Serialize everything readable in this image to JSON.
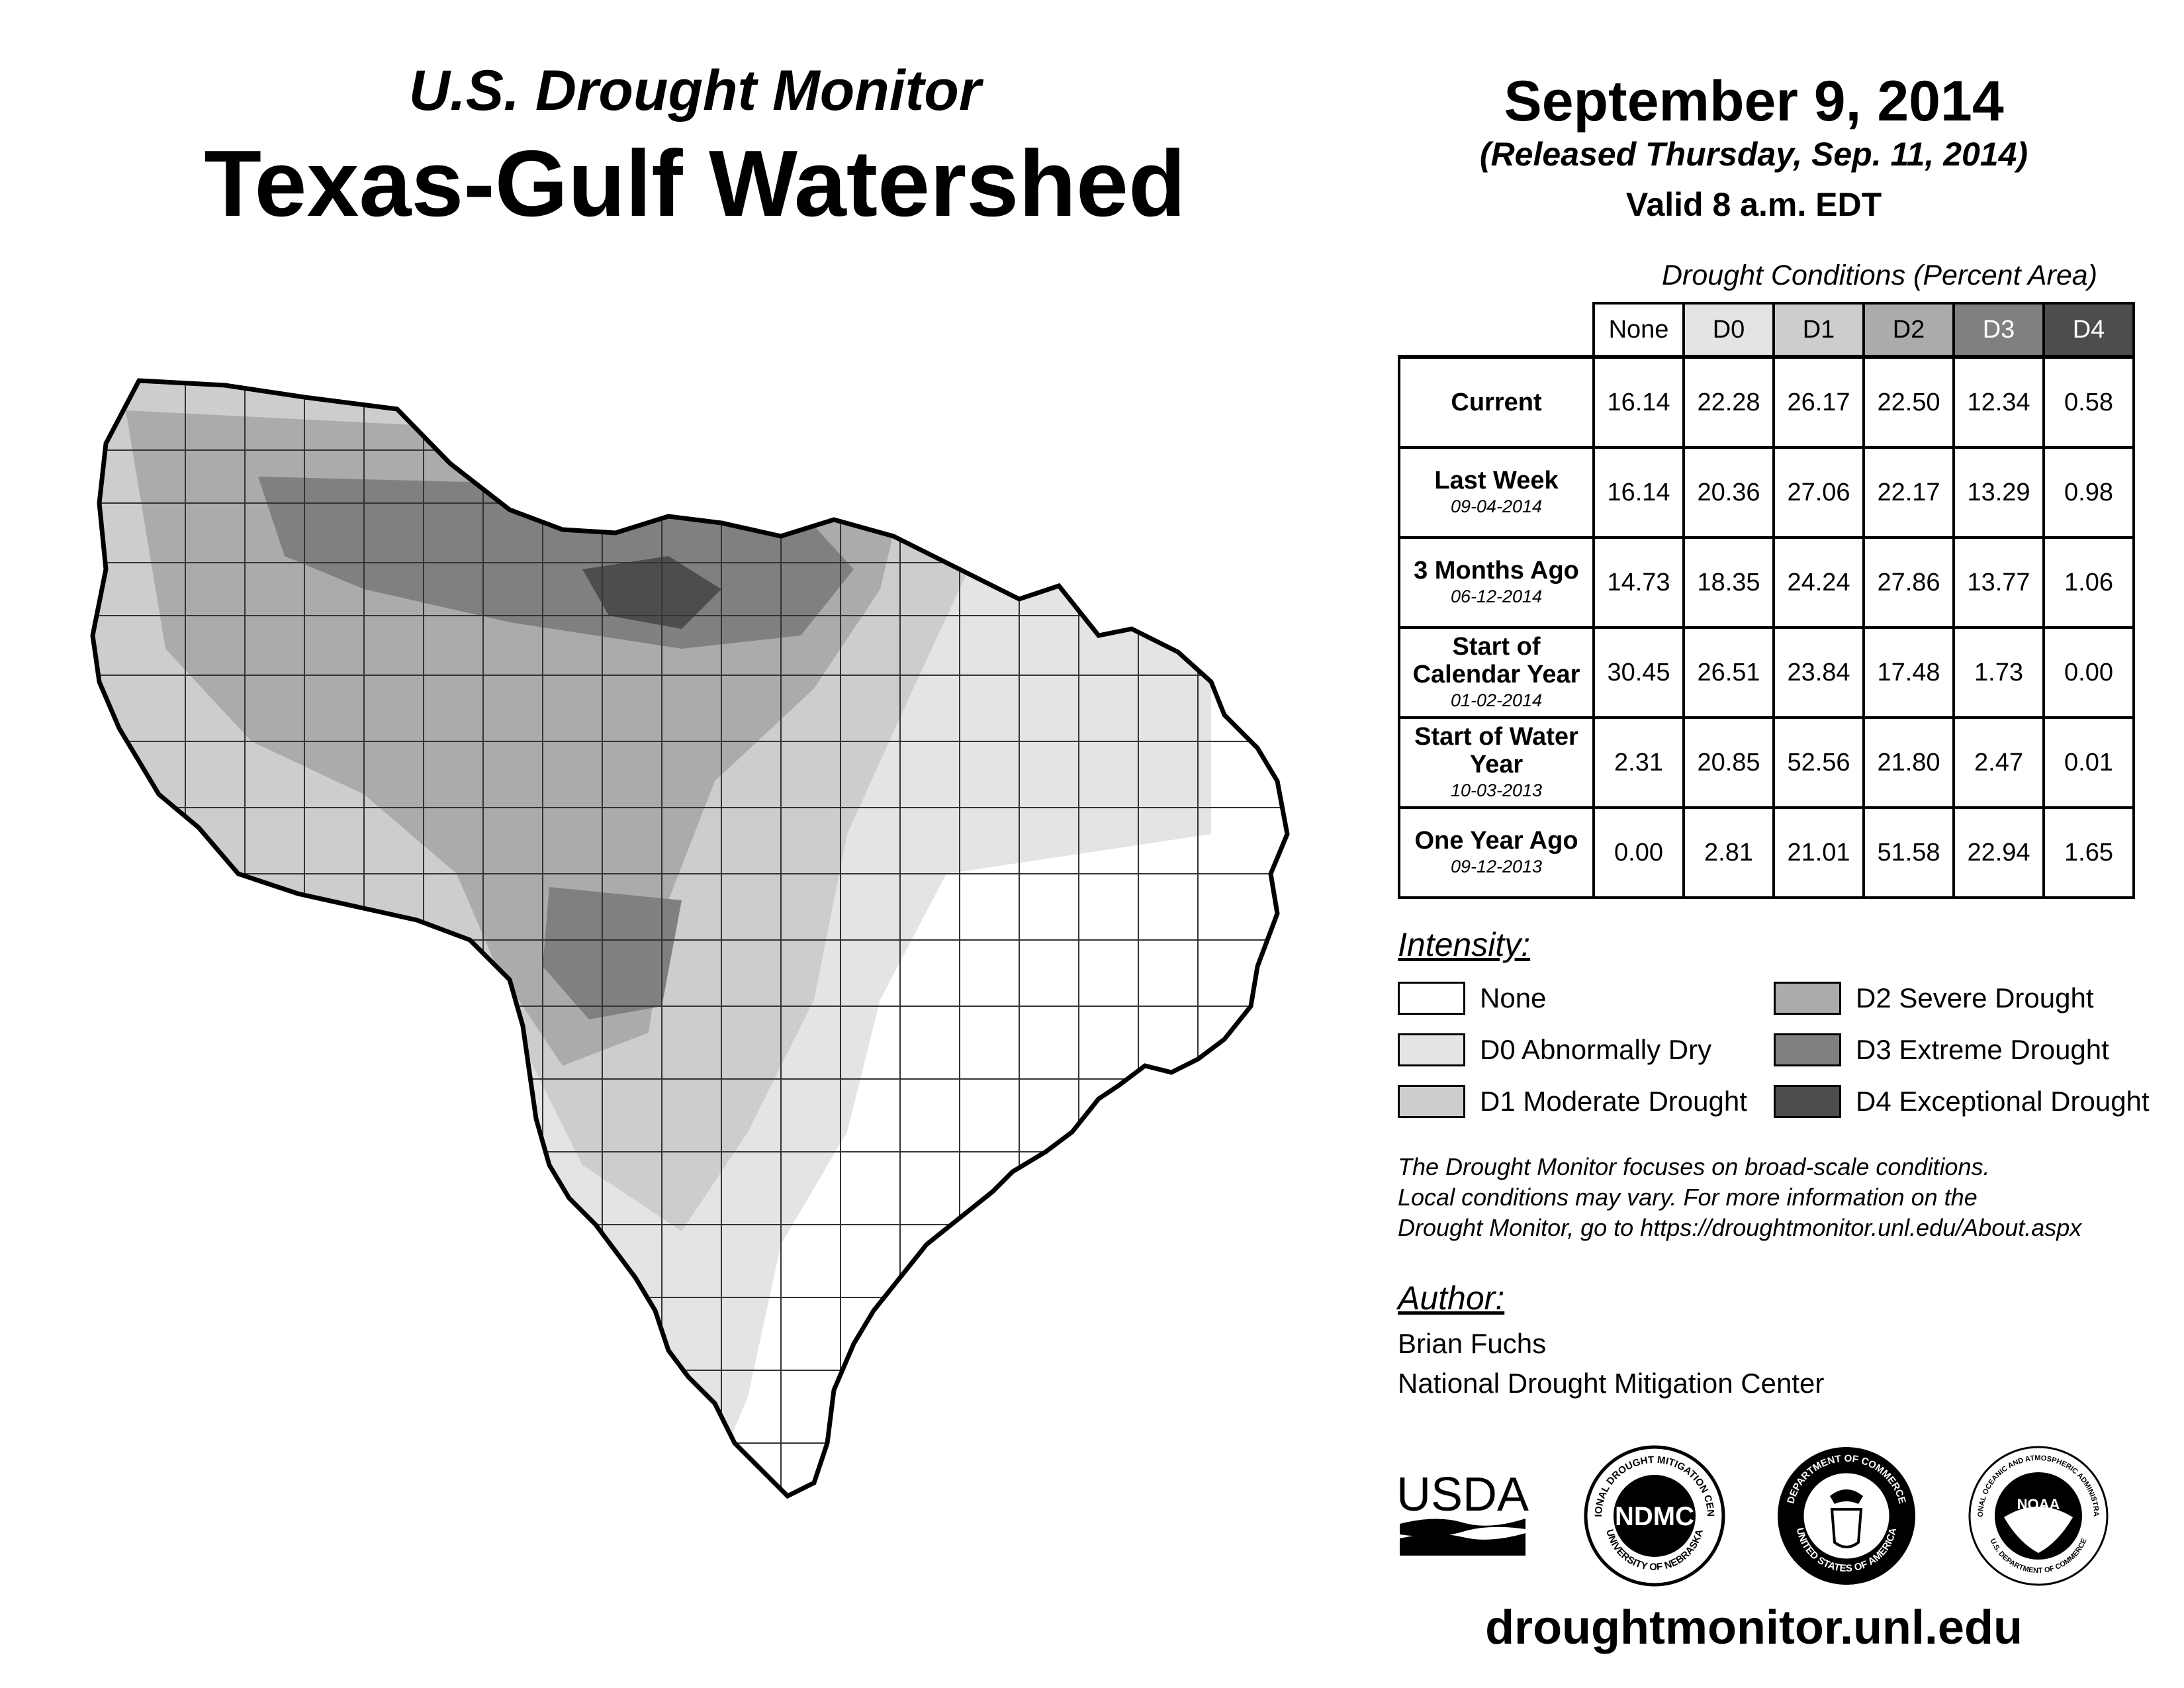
{
  "header": {
    "subtitle": "U.S. Drought Monitor",
    "title": "Texas-Gulf Watershed",
    "date": "September 9, 2014",
    "released": "(Released Thursday, Sep. 11, 2014)",
    "valid": "Valid 8 a.m. EDT"
  },
  "table": {
    "caption": "Drought Conditions (Percent Area)",
    "columns": [
      "None",
      "D0",
      "D1",
      "D2",
      "D3",
      "D4"
    ],
    "column_colors": [
      "#ffffff",
      "#e4e4e4",
      "#cdcdcd",
      "#ababab",
      "#808080",
      "#4d4d4d"
    ],
    "column_text_colors": [
      "#000000",
      "#000000",
      "#000000",
      "#000000",
      "#ffffff",
      "#ffffff"
    ],
    "rows": [
      {
        "label": "Current",
        "date": "",
        "values": [
          "16.14",
          "22.28",
          "26.17",
          "22.50",
          "12.34",
          "0.58"
        ]
      },
      {
        "label": "Last Week",
        "date": "09-04-2014",
        "values": [
          "16.14",
          "20.36",
          "27.06",
          "22.17",
          "13.29",
          "0.98"
        ]
      },
      {
        "label": "3 Months Ago",
        "date": "06-12-2014",
        "values": [
          "14.73",
          "18.35",
          "24.24",
          "27.86",
          "13.77",
          "1.06"
        ]
      },
      {
        "label": "Start of Calendar Year",
        "date": "01-02-2014",
        "values": [
          "30.45",
          "26.51",
          "23.84",
          "17.48",
          "1.73",
          "0.00"
        ]
      },
      {
        "label": "Start of Water Year",
        "date": "10-03-2013",
        "values": [
          "2.31",
          "20.85",
          "52.56",
          "21.80",
          "2.47",
          "0.01"
        ]
      },
      {
        "label": "One Year Ago",
        "date": "09-12-2013",
        "values": [
          "0.00",
          "2.81",
          "21.01",
          "51.58",
          "22.94",
          "1.65"
        ]
      }
    ]
  },
  "legend": {
    "title": "Intensity:",
    "items": [
      {
        "label": "None",
        "color": "#ffffff"
      },
      {
        "label": "D0 Abnormally Dry",
        "color": "#e4e4e4"
      },
      {
        "label": "D1 Moderate Drought",
        "color": "#cdcdcd"
      },
      {
        "label": "D2 Severe Drought",
        "color": "#ababab"
      },
      {
        "label": "D3 Extreme Drought",
        "color": "#808080"
      },
      {
        "label": "D4 Exceptional Drought",
        "color": "#4d4d4d"
      }
    ]
  },
  "note": {
    "line1": "The Drought Monitor focuses on broad-scale conditions.",
    "line2": "Local conditions may vary. For more information on the",
    "line3": "Drought Monitor, go to https://droughtmonitor.unl.edu/About.aspx"
  },
  "author": {
    "title": "Author:",
    "name": "Brian Fuchs",
    "org": "National Drought Mitigation Center"
  },
  "logos": {
    "usda": "USDA",
    "ndmc": "NDMC",
    "ndmc_ring_top": "NATIONAL DROUGHT MITIGATION CENTER",
    "ndmc_ring_bottom": "UNIVERSITY OF NEBRASKA",
    "doc_ring_top": "DEPARTMENT OF COMMERCE",
    "doc_ring_bottom": "UNITED STATES OF AMERICA",
    "noaa": "NOAA",
    "noaa_ring_top": "NATIONAL OCEANIC AND ATMOSPHERIC ADMINISTRATION",
    "noaa_ring_bottom": "U.S. DEPARTMENT OF COMMERCE"
  },
  "footer": {
    "url": "droughtmonitor.unl.edu"
  }
}
